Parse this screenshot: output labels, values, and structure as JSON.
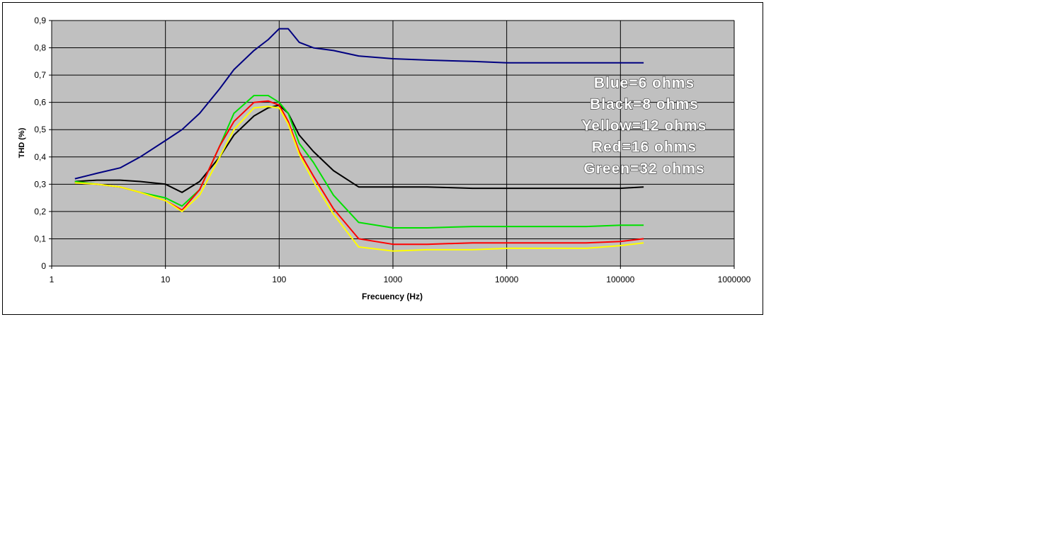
{
  "chart_data": {
    "type": "line",
    "ylabel": "THD (%)",
    "xlabel": "Frecuency (Hz)",
    "annotations": [
      "Blue=6 ohms",
      "Black=8 ohms",
      "Yellow=12 ohms",
      "Red=16 ohms",
      "Green=32 ohms"
    ],
    "log_x": true,
    "grid": true,
    "xlim": [
      1,
      1000000
    ],
    "xticks": [
      1,
      10,
      100,
      1000,
      10000,
      100000,
      1000000
    ],
    "ylim": [
      0,
      0.9
    ],
    "yticks": [
      {
        "value": 0,
        "label": "0"
      },
      {
        "value": 0.1,
        "label": "0,1"
      },
      {
        "value": 0.2,
        "label": "0,2"
      },
      {
        "value": 0.3,
        "label": "0,3"
      },
      {
        "value": 0.4,
        "label": "0,4"
      },
      {
        "value": 0.5,
        "label": "0,5"
      },
      {
        "value": 0.6,
        "label": "0,6"
      },
      {
        "value": 0.7,
        "label": "0,7"
      },
      {
        "value": 0.8,
        "label": "0,8"
      },
      {
        "value": 0.9,
        "label": "0,9"
      }
    ],
    "x": [
      1.6,
      2.5,
      4,
      6,
      10,
      14,
      20,
      30,
      40,
      60,
      80,
      100,
      120,
      150,
      200,
      300,
      500,
      1000,
      2000,
      5000,
      10000,
      20000,
      50000,
      100000,
      160000
    ],
    "series": [
      {
        "color": "#000080",
        "values": [
          0.32,
          0.34,
          0.36,
          0.4,
          0.46,
          0.5,
          0.56,
          0.65,
          0.72,
          0.79,
          0.83,
          0.87,
          0.87,
          0.82,
          0.8,
          0.79,
          0.77,
          0.76,
          0.755,
          0.75,
          0.745,
          0.745,
          0.745,
          0.745,
          0.745
        ]
      },
      {
        "color": "#000000",
        "values": [
          0.31,
          0.315,
          0.315,
          0.31,
          0.3,
          0.27,
          0.31,
          0.4,
          0.48,
          0.55,
          0.58,
          0.59,
          0.56,
          0.48,
          0.42,
          0.35,
          0.29,
          0.29,
          0.29,
          0.285,
          0.285,
          0.285,
          0.285,
          0.285,
          0.29
        ]
      },
      {
        "color": "#00e000",
        "values": [
          0.31,
          0.3,
          0.29,
          0.27,
          0.25,
          0.22,
          0.28,
          0.44,
          0.56,
          0.625,
          0.625,
          0.6,
          0.56,
          0.45,
          0.38,
          0.26,
          0.16,
          0.14,
          0.14,
          0.145,
          0.145,
          0.145,
          0.145,
          0.15,
          0.15
        ]
      },
      {
        "color": "#ff0000",
        "values": [
          0.305,
          0.3,
          0.29,
          0.27,
          0.24,
          0.205,
          0.28,
          0.44,
          0.53,
          0.6,
          0.605,
          0.59,
          0.53,
          0.42,
          0.33,
          0.21,
          0.1,
          0.08,
          0.08,
          0.085,
          0.085,
          0.085,
          0.085,
          0.09,
          0.1
        ]
      },
      {
        "color": "#ffff00",
        "values": [
          0.305,
          0.3,
          0.29,
          0.27,
          0.24,
          0.2,
          0.26,
          0.4,
          0.5,
          0.58,
          0.585,
          0.58,
          0.52,
          0.41,
          0.31,
          0.19,
          0.07,
          0.055,
          0.06,
          0.06,
          0.065,
          0.065,
          0.065,
          0.075,
          0.085
        ]
      }
    ]
  }
}
